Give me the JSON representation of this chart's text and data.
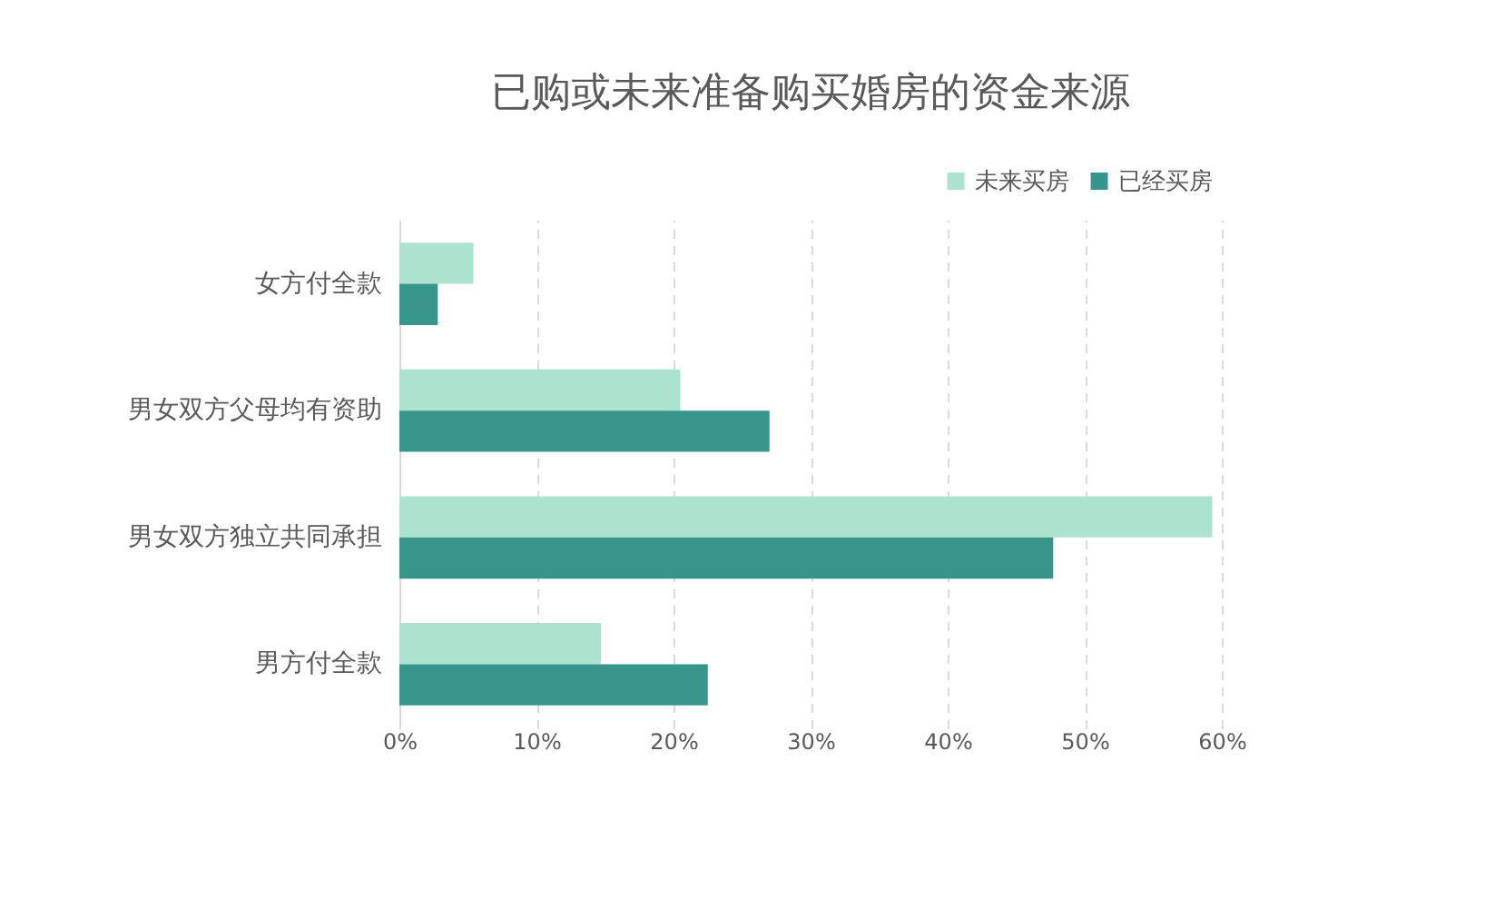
{
  "chart_data": {
    "type": "bar",
    "orientation": "horizontal",
    "title": "已购或未来准备购买婚房的资金来源",
    "categories": [
      "女方付全款",
      "男女双方父母均有资助",
      "男女双方独立共同承担",
      "男方付全款"
    ],
    "series": [
      {
        "name": "未来买房",
        "color": "#abe3cf",
        "values": [
          5.4,
          20.5,
          59.3,
          14.7
        ]
      },
      {
        "name": "已经买房",
        "color": "#36968c",
        "values": [
          2.8,
          27.0,
          47.7,
          22.5
        ]
      }
    ],
    "xlim": [
      0,
      60
    ],
    "xticks": [
      {
        "value": 0,
        "label": "0%"
      },
      {
        "value": 10,
        "label": "10%"
      },
      {
        "value": 20,
        "label": "20%"
      },
      {
        "value": 30,
        "label": "30%"
      },
      {
        "value": 40,
        "label": "40%"
      },
      {
        "value": 50,
        "label": "50%"
      },
      {
        "value": 60,
        "label": "60%"
      }
    ],
    "grid": "x",
    "legend": "top right"
  }
}
